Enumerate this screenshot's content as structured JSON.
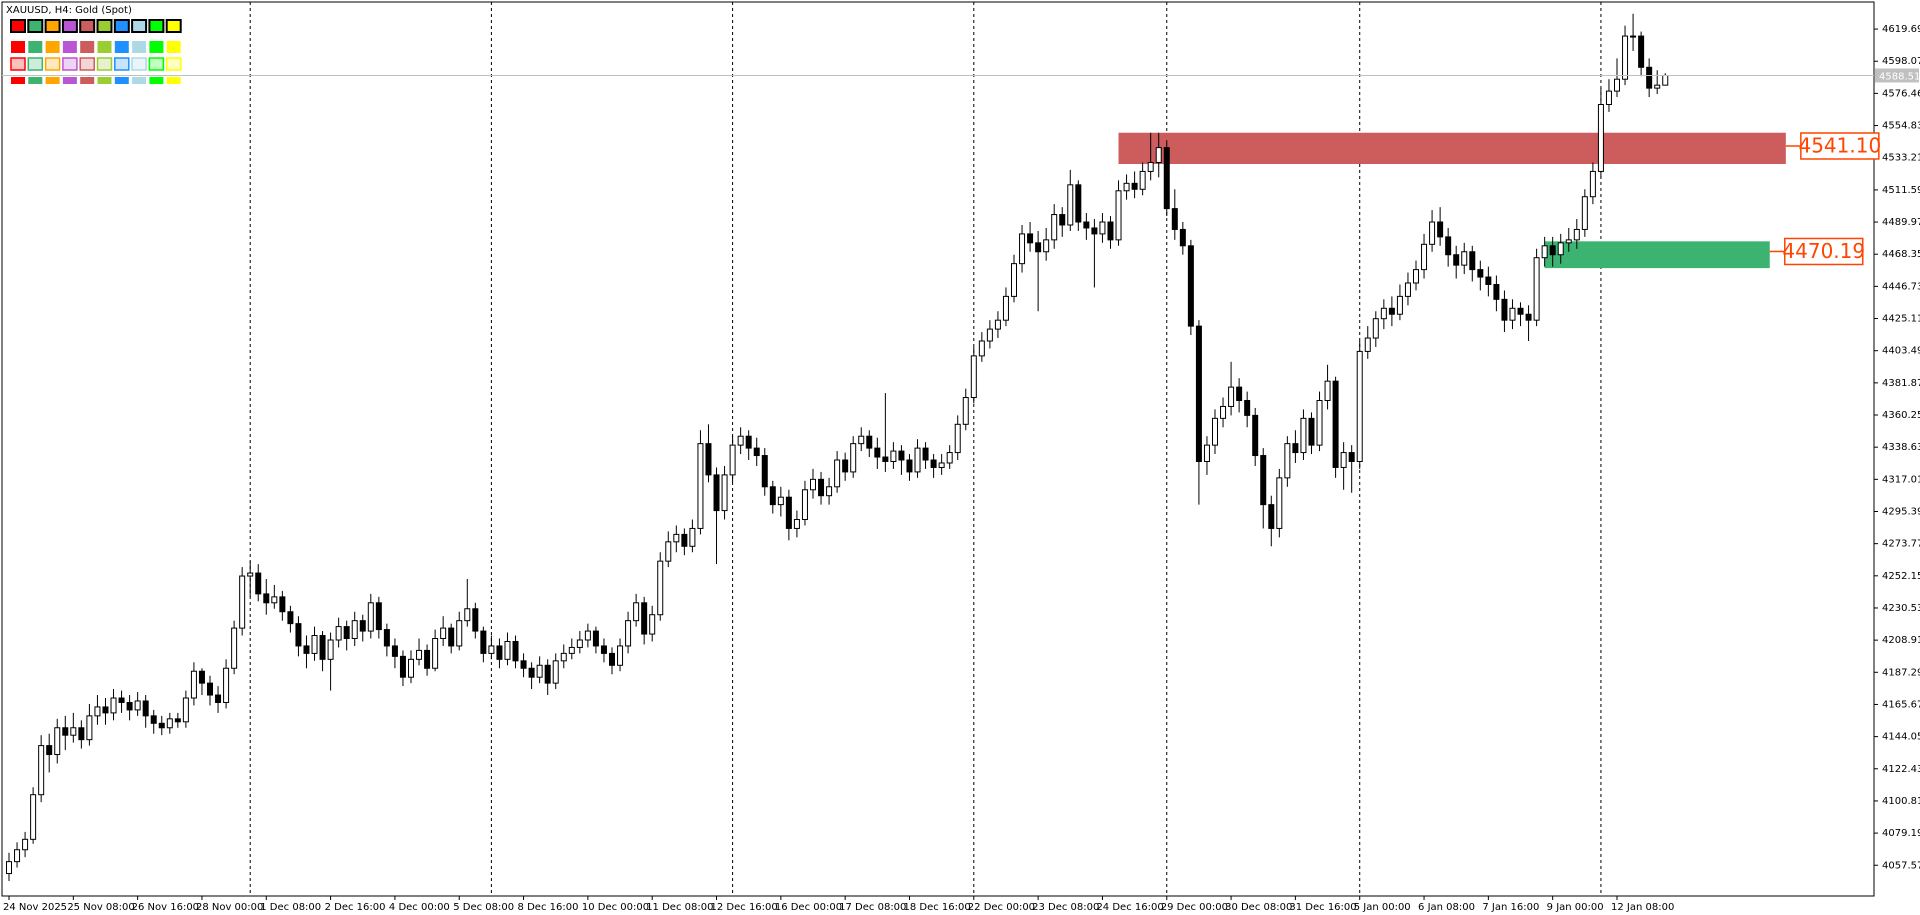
{
  "chart_data": {
    "type": "candlestick",
    "title": "XAUUSD, H4:  Gold (Spot)",
    "categories": [
      "24 Nov 2025",
      null,
      null,
      null,
      null,
      null,
      null,
      null,
      "25 Nov 08:00",
      null,
      null,
      null,
      null,
      null,
      null,
      null,
      "26 Nov 16:00",
      null,
      null,
      null,
      null,
      null,
      null,
      null,
      "28 Nov 00:00",
      null,
      null,
      null,
      null,
      null,
      null,
      null,
      "1 Dec 08:00",
      null,
      null,
      null,
      null,
      null,
      null,
      null,
      "2 Dec 16:00",
      null,
      null,
      null,
      null,
      null,
      null,
      null,
      "4 Dec 00:00",
      null,
      null,
      null,
      null,
      null,
      null,
      null,
      "5 Dec 08:00",
      null,
      null,
      null,
      null,
      null,
      null,
      null,
      "8 Dec 16:00",
      null,
      null,
      null,
      null,
      null,
      null,
      null,
      "10 Dec 00:00",
      null,
      null,
      null,
      null,
      null,
      null,
      null,
      "11 Dec 08:00",
      null,
      null,
      null,
      null,
      null,
      null,
      null,
      "12 Dec 16:00",
      null,
      null,
      null,
      null,
      null,
      null,
      null,
      "16 Dec 00:00",
      null,
      null,
      null,
      null,
      null,
      null,
      null,
      "17 Dec 08:00",
      null,
      null,
      null,
      null,
      null,
      null,
      null,
      "18 Dec 16:00",
      null,
      null,
      null,
      null,
      null,
      null,
      null,
      "22 Dec 00:00",
      null,
      null,
      null,
      null,
      null,
      null,
      null,
      "23 Dec 08:00",
      null,
      null,
      null,
      null,
      null,
      null,
      null,
      "24 Dec 16:00",
      null,
      null,
      null,
      null,
      null,
      null,
      null,
      "29 Dec 00:00",
      null,
      null,
      null,
      null,
      null,
      null,
      null,
      "30 Dec 08:00",
      null,
      null,
      null,
      null,
      null,
      null,
      null,
      "31 Dec 16:00",
      null,
      null,
      null,
      null,
      null,
      null,
      null,
      "5 Jan 00:00",
      null,
      null,
      null,
      null,
      null,
      null,
      null,
      "6 Jan 08:00",
      null,
      null,
      null,
      null,
      null,
      null,
      null,
      "7 Jan 16:00",
      null,
      null,
      null,
      null,
      null,
      null,
      null,
      "9 Jan 00:00",
      null,
      null,
      null,
      null,
      null,
      null,
      null,
      "12 Jan 08:00",
      null,
      null,
      null,
      null,
      null,
      null
    ],
    "open": [
      4052,
      4060,
      4068,
      4075,
      4105,
      4138,
      4132,
      4150,
      4145,
      4150,
      4142,
      4158,
      4164,
      4160,
      4170,
      4167,
      4162,
      4168,
      4158,
      4153,
      4150,
      4156,
      4154,
      4170,
      4188,
      4180,
      4172,
      4167,
      4190,
      4217,
      4252,
      4254,
      4240,
      4234,
      4238,
      4228,
      4220,
      4205,
      4200,
      4212,
      4196,
      4209,
      4218,
      4210,
      4222,
      4215,
      4234,
      4216,
      4205,
      4198,
      4184,
      4196,
      4202,
      4190,
      4210,
      4217,
      4205,
      4222,
      4230,
      4215,
      4200,
      4205,
      4196,
      4208,
      4195,
      4190,
      4184,
      4192,
      4180,
      4195,
      4200,
      4204,
      4209,
      4215,
      4205,
      4200,
      4192,
      4205,
      4222,
      4234,
      4213,
      4226,
      4262,
      4275,
      4280,
      4272,
      4284,
      4341,
      4320,
      4296,
      4320,
      4340,
      4346,
      4338,
      4333,
      4312,
      4300,
      4305,
      4284,
      4290,
      4310,
      4317,
      4306,
      4312,
      4330,
      4322,
      4341,
      4346,
      4338,
      4332,
      4329,
      4336,
      4330,
      4322,
      4338,
      4330,
      4325,
      4328,
      4335,
      4354,
      4372,
      4400,
      4410,
      4418,
      4424,
      4440,
      4462,
      4482,
      4476,
      4470,
      4478,
      4495,
      4488,
      4515,
      4490,
      4486,
      4482,
      4490,
      4478,
      4511,
      4516,
      4512,
      4524,
      4530,
      4540,
      4499,
      4485,
      4474,
      4420,
      4329,
      4340,
      4358,
      4366,
      4379,
      4370,
      4360,
      4333,
      4300,
      4284,
      4318,
      4341,
      4335,
      4358,
      4340,
      4370,
      4383,
      4325,
      4335,
      4329,
      4403,
      4412,
      4425,
      4432,
      4428,
      4440,
      4449,
      4458,
      4475,
      4490,
      4480,
      4468,
      4461,
      4470,
      4458,
      4453,
      4448,
      4438,
      4424,
      4432,
      4428,
      4424,
      4466,
      4474,
      4468,
      4476,
      4478,
      4485,
      4507,
      4524,
      4569,
      4578,
      4586,
      4615,
      4615,
      4594,
      4580,
      4582
    ],
    "high": [
      4066,
      4073,
      4080,
      4110,
      4145,
      4146,
      4156,
      4158,
      4160,
      4155,
      4166,
      4172,
      4170,
      4176,
      4175,
      4172,
      4174,
      4172,
      4162,
      4158,
      4160,
      4160,
      4175,
      4194,
      4190,
      4185,
      4178,
      4196,
      4222,
      4258,
      4262,
      4260,
      4250,
      4246,
      4242,
      4232,
      4225,
      4212,
      4218,
      4215,
      4214,
      4224,
      4222,
      4228,
      4226,
      4240,
      4238,
      4220,
      4210,
      4202,
      4202,
      4210,
      4206,
      4216,
      4225,
      4220,
      4228,
      4250,
      4234,
      4218,
      4212,
      4210,
      4214,
      4212,
      4200,
      4194,
      4198,
      4196,
      4200,
      4206,
      4210,
      4215,
      4220,
      4218,
      4210,
      4204,
      4210,
      4228,
      4240,
      4238,
      4232,
      4268,
      4282,
      4286,
      4284,
      4290,
      4350,
      4354,
      4325,
      4326,
      4346,
      4352,
      4350,
      4345,
      4338,
      4316,
      4312,
      4310,
      4296,
      4316,
      4324,
      4322,
      4318,
      4336,
      4335,
      4346,
      4352,
      4350,
      4345,
      4375,
      4342,
      4340,
      4334,
      4344,
      4342,
      4334,
      4334,
      4340,
      4360,
      4378,
      4406,
      4416,
      4424,
      4430,
      4446,
      4468,
      4488,
      4490,
      4484,
      4486,
      4502,
      4500,
      4525,
      4518,
      4496,
      4492,
      4496,
      4494,
      4518,
      4522,
      4524,
      4530,
      4550,
      4550,
      4545,
      4512,
      4490,
      4478,
      4424,
      4346,
      4364,
      4372,
      4396,
      4385,
      4376,
      4365,
      4338,
      4306,
      4324,
      4346,
      4350,
      4364,
      4362,
      4376,
      4394,
      4386,
      4342,
      4340,
      4410,
      4420,
      4430,
      4438,
      4440,
      4448,
      4456,
      4464,
      4482,
      4498,
      4500,
      4486,
      4474,
      4476,
      4474,
      4464,
      4460,
      4454,
      4444,
      4438,
      4436,
      4434,
      4472,
      4480,
      4480,
      4482,
      4486,
      4492,
      4512,
      4530,
      4580,
      4586,
      4600,
      4622,
      4630,
      4618,
      4600,
      4592,
      4590
    ],
    "low": [
      4047,
      4056,
      4063,
      4072,
      4100,
      4120,
      4126,
      4135,
      4140,
      4136,
      4138,
      4152,
      4152,
      4155,
      4160,
      4155,
      4158,
      4150,
      4146,
      4145,
      4146,
      4150,
      4150,
      4165,
      4172,
      4165,
      4160,
      4163,
      4186,
      4212,
      4238,
      4235,
      4226,
      4230,
      4222,
      4214,
      4198,
      4190,
      4195,
      4188,
      4175,
      4204,
      4202,
      4205,
      4208,
      4210,
      4210,
      4198,
      4190,
      4178,
      4180,
      4192,
      4185,
      4188,
      4205,
      4200,
      4202,
      4218,
      4210,
      4194,
      4196,
      4190,
      4192,
      4190,
      4184,
      4176,
      4180,
      4172,
      4176,
      4190,
      4196,
      4200,
      4204,
      4200,
      4194,
      4186,
      4188,
      4200,
      4218,
      4206,
      4208,
      4222,
      4258,
      4268,
      4266,
      4268,
      4280,
      4315,
      4260,
      4290,
      4315,
      4334,
      4330,
      4326,
      4306,
      4294,
      4292,
      4276,
      4278,
      4286,
      4304,
      4300,
      4300,
      4308,
      4316,
      4318,
      4336,
      4332,
      4324,
      4322,
      4324,
      4320,
      4316,
      4318,
      4324,
      4318,
      4320,
      4324,
      4330,
      4350,
      4368,
      4396,
      4405,
      4412,
      4420,
      4436,
      4456,
      4470,
      4430,
      4464,
      4472,
      4480,
      4484,
      4484,
      4478,
      4446,
      4476,
      4472,
      4474,
      4505,
      4506,
      4508,
      4518,
      4520,
      4494,
      4478,
      4468,
      4414,
      4300,
      4320,
      4334,
      4352,
      4360,
      4362,
      4352,
      4326,
      4284,
      4272,
      4278,
      4312,
      4328,
      4330,
      4334,
      4336,
      4364,
      4318,
      4310,
      4308,
      4324,
      4398,
      4406,
      4418,
      4420,
      4424,
      4434,
      4444,
      4452,
      4470,
      4474,
      4460,
      4452,
      4455,
      4450,
      4444,
      4440,
      4430,
      4416,
      4418,
      4420,
      4410,
      4420,
      4460,
      4460,
      4462,
      4470,
      4472,
      4480,
      4502,
      4520,
      4564,
      4574,
      4582,
      4605,
      4588,
      4574,
      4576,
      4585
    ],
    "close": [
      4060,
      4068,
      4075,
      4105,
      4138,
      4132,
      4150,
      4145,
      4150,
      4142,
      4158,
      4164,
      4160,
      4170,
      4167,
      4162,
      4168,
      4158,
      4153,
      4150,
      4156,
      4154,
      4170,
      4188,
      4180,
      4172,
      4167,
      4190,
      4217,
      4252,
      4254,
      4240,
      4234,
      4238,
      4228,
      4220,
      4205,
      4200,
      4212,
      4196,
      4209,
      4218,
      4210,
      4222,
      4215,
      4234,
      4216,
      4205,
      4198,
      4184,
      4196,
      4202,
      4190,
      4210,
      4217,
      4205,
      4222,
      4230,
      4215,
      4200,
      4205,
      4196,
      4208,
      4195,
      4190,
      4184,
      4192,
      4180,
      4195,
      4200,
      4204,
      4209,
      4215,
      4205,
      4200,
      4192,
      4205,
      4222,
      4234,
      4213,
      4226,
      4262,
      4275,
      4280,
      4272,
      4284,
      4341,
      4320,
      4296,
      4320,
      4340,
      4346,
      4338,
      4333,
      4312,
      4300,
      4305,
      4284,
      4290,
      4310,
      4317,
      4306,
      4312,
      4330,
      4322,
      4341,
      4346,
      4338,
      4332,
      4329,
      4336,
      4330,
      4322,
      4338,
      4330,
      4325,
      4328,
      4335,
      4354,
      4372,
      4400,
      4410,
      4418,
      4424,
      4440,
      4462,
      4482,
      4476,
      4470,
      4478,
      4495,
      4488,
      4515,
      4490,
      4486,
      4482,
      4490,
      4478,
      4511,
      4516,
      4512,
      4524,
      4530,
      4540,
      4499,
      4485,
      4474,
      4420,
      4329,
      4340,
      4358,
      4366,
      4379,
      4370,
      4360,
      4333,
      4300,
      4284,
      4318,
      4341,
      4335,
      4358,
      4340,
      4370,
      4383,
      4325,
      4335,
      4329,
      4403,
      4412,
      4425,
      4432,
      4428,
      4440,
      4449,
      4458,
      4475,
      4490,
      4480,
      4468,
      4461,
      4470,
      4458,
      4453,
      4448,
      4438,
      4424,
      4432,
      4428,
      4424,
      4466,
      4474,
      4468,
      4476,
      4478,
      4485,
      4507,
      4524,
      4569,
      4578,
      4586,
      4615,
      4615,
      4594,
      4580,
      4582,
      4588.51
    ],
    "up_color": "#ffffff",
    "down_color": "#000000",
    "line_color": "#000000",
    "ylim": [
      4036.9,
      4637.9
    ],
    "yticks": [
      4619.69,
      4598.07,
      4576.46,
      4554.83,
      4533.21,
      4511.59,
      4489.97,
      4468.35,
      4446.73,
      4425.11,
      4403.49,
      4381.87,
      4360.25,
      4338.63,
      4317.01,
      4295.39,
      4273.77,
      4252.15,
      4230.53,
      4208.91,
      4187.29,
      4165.67,
      4144.05,
      4122.43,
      4100.81,
      4079.19,
      4057.57
    ],
    "separators": [
      30,
      60,
      90,
      120,
      144,
      168,
      198
    ],
    "zones": [
      {
        "color": "#cd5c5c",
        "top": 4550,
        "bottom": 4529,
        "x": [
          138,
          221
        ],
        "value": 4541.1,
        "value_label": "4541.10"
      },
      {
        "color": "#3cb371",
        "top": 4477,
        "bottom": 4459,
        "x": [
          191,
          219
        ],
        "value": 4470.19,
        "value_label": "4470.19"
      }
    ],
    "label_color": "#ff4500"
  }
}
